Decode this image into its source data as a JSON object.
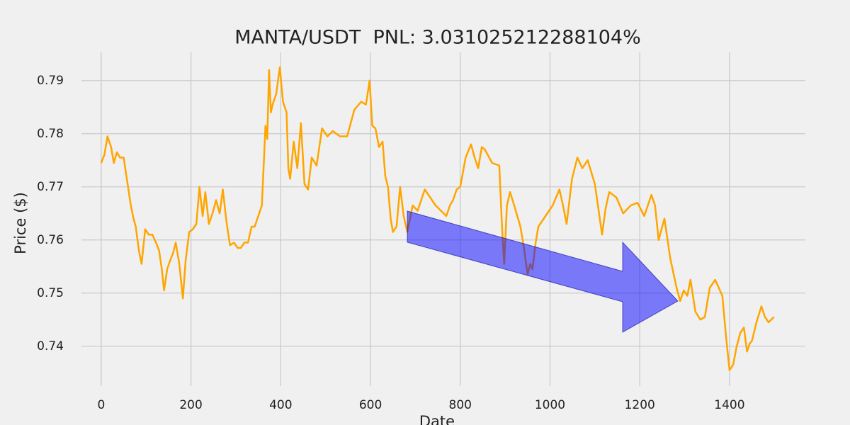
{
  "chart_data": {
    "type": "line",
    "title": "MANTA/USDT  PNL: 3.031025212288104%",
    "x_label": "Date",
    "y_label": "Price ($)",
    "color": "#ffa500",
    "grid": true,
    "xlim": [
      -44,
      1569
    ],
    "ylim": [
      0.7325,
      0.7953
    ],
    "xticks": [
      0,
      200,
      400,
      600,
      800,
      1000,
      1200,
      1400
    ],
    "yticks": [
      0.74,
      0.75,
      0.76,
      0.77,
      0.78,
      0.79
    ],
    "x": [
      0,
      7,
      14,
      22,
      28,
      35,
      42,
      50,
      58,
      66,
      72,
      77,
      84,
      90,
      98,
      106,
      114,
      122,
      129,
      135,
      140,
      147,
      153,
      160,
      166,
      174,
      182,
      188,
      196,
      204,
      212,
      219,
      226,
      232,
      240,
      248,
      256,
      264,
      271,
      279,
      287,
      296,
      304,
      311,
      319,
      327,
      335,
      342,
      350,
      358,
      366,
      370,
      374,
      378,
      382,
      390,
      398,
      405,
      413,
      417,
      421,
      429,
      437,
      445,
      453,
      461,
      469,
      480,
      492,
      504,
      516,
      532,
      548,
      564,
      579,
      590,
      598,
      604,
      611,
      619,
      627,
      633,
      639,
      645,
      650,
      658,
      666,
      674,
      682,
      694,
      705,
      713,
      721,
      745,
      769,
      777,
      784,
      792,
      800,
      812,
      824,
      832,
      840,
      848,
      855,
      871,
      887,
      893,
      898,
      904,
      911,
      922,
      934,
      942,
      950,
      956,
      961,
      968,
      974,
      990,
      1006,
      1021,
      1029,
      1037,
      1049,
      1061,
      1072,
      1084,
      1100,
      1116,
      1124,
      1132,
      1148,
      1163,
      1180,
      1195,
      1210,
      1226,
      1234,
      1242,
      1250,
      1255,
      1268,
      1282,
      1290,
      1298,
      1306,
      1313,
      1324,
      1335,
      1345,
      1356,
      1368,
      1376,
      1384,
      1392,
      1400,
      1408,
      1416,
      1424,
      1432,
      1439,
      1445,
      1450,
      1460,
      1471,
      1479,
      1487,
      1499
    ],
    "values": [
      0.7745,
      0.776,
      0.7795,
      0.7775,
      0.7745,
      0.7765,
      0.7755,
      0.7755,
      0.771,
      0.7665,
      0.764,
      0.7625,
      0.758,
      0.7555,
      0.762,
      0.761,
      0.761,
      0.7595,
      0.758,
      0.7545,
      0.7505,
      0.7545,
      0.756,
      0.7575,
      0.7595,
      0.7555,
      0.749,
      0.756,
      0.7615,
      0.762,
      0.763,
      0.77,
      0.7645,
      0.769,
      0.763,
      0.765,
      0.7675,
      0.765,
      0.7695,
      0.7635,
      0.759,
      0.7595,
      0.7585,
      0.7585,
      0.7595,
      0.7595,
      0.7625,
      0.7625,
      0.7645,
      0.7665,
      0.7815,
      0.779,
      0.792,
      0.784,
      0.7855,
      0.7875,
      0.7925,
      0.786,
      0.784,
      0.7735,
      0.7715,
      0.7785,
      0.7735,
      0.782,
      0.7705,
      0.7695,
      0.7755,
      0.774,
      0.781,
      0.7795,
      0.7805,
      0.7795,
      0.7795,
      0.7845,
      0.786,
      0.7855,
      0.79,
      0.7815,
      0.781,
      0.7775,
      0.7785,
      0.772,
      0.77,
      0.764,
      0.7615,
      0.7625,
      0.77,
      0.7645,
      0.7615,
      0.7665,
      0.7655,
      0.7675,
      0.7695,
      0.7665,
      0.7645,
      0.7665,
      0.7675,
      0.7695,
      0.77,
      0.7755,
      0.778,
      0.7755,
      0.7735,
      0.7775,
      0.777,
      0.7745,
      0.774,
      0.7625,
      0.7555,
      0.7665,
      0.769,
      0.766,
      0.7625,
      0.7585,
      0.7535,
      0.7555,
      0.7545,
      0.7595,
      0.7625,
      0.7645,
      0.7665,
      0.7695,
      0.7665,
      0.763,
      0.7715,
      0.7755,
      0.7735,
      0.775,
      0.7705,
      0.761,
      0.766,
      0.769,
      0.768,
      0.765,
      0.7665,
      0.767,
      0.7645,
      0.7685,
      0.7665,
      0.76,
      0.7625,
      0.764,
      0.7565,
      0.751,
      0.7485,
      0.7505,
      0.7495,
      0.7525,
      0.7465,
      0.745,
      0.7455,
      0.751,
      0.7525,
      0.751,
      0.7495,
      0.742,
      0.7355,
      0.7365,
      0.74,
      0.7425,
      0.7435,
      0.739,
      0.7405,
      0.741,
      0.7445,
      0.7475,
      0.7455,
      0.7445,
      0.7455
    ]
  }
}
